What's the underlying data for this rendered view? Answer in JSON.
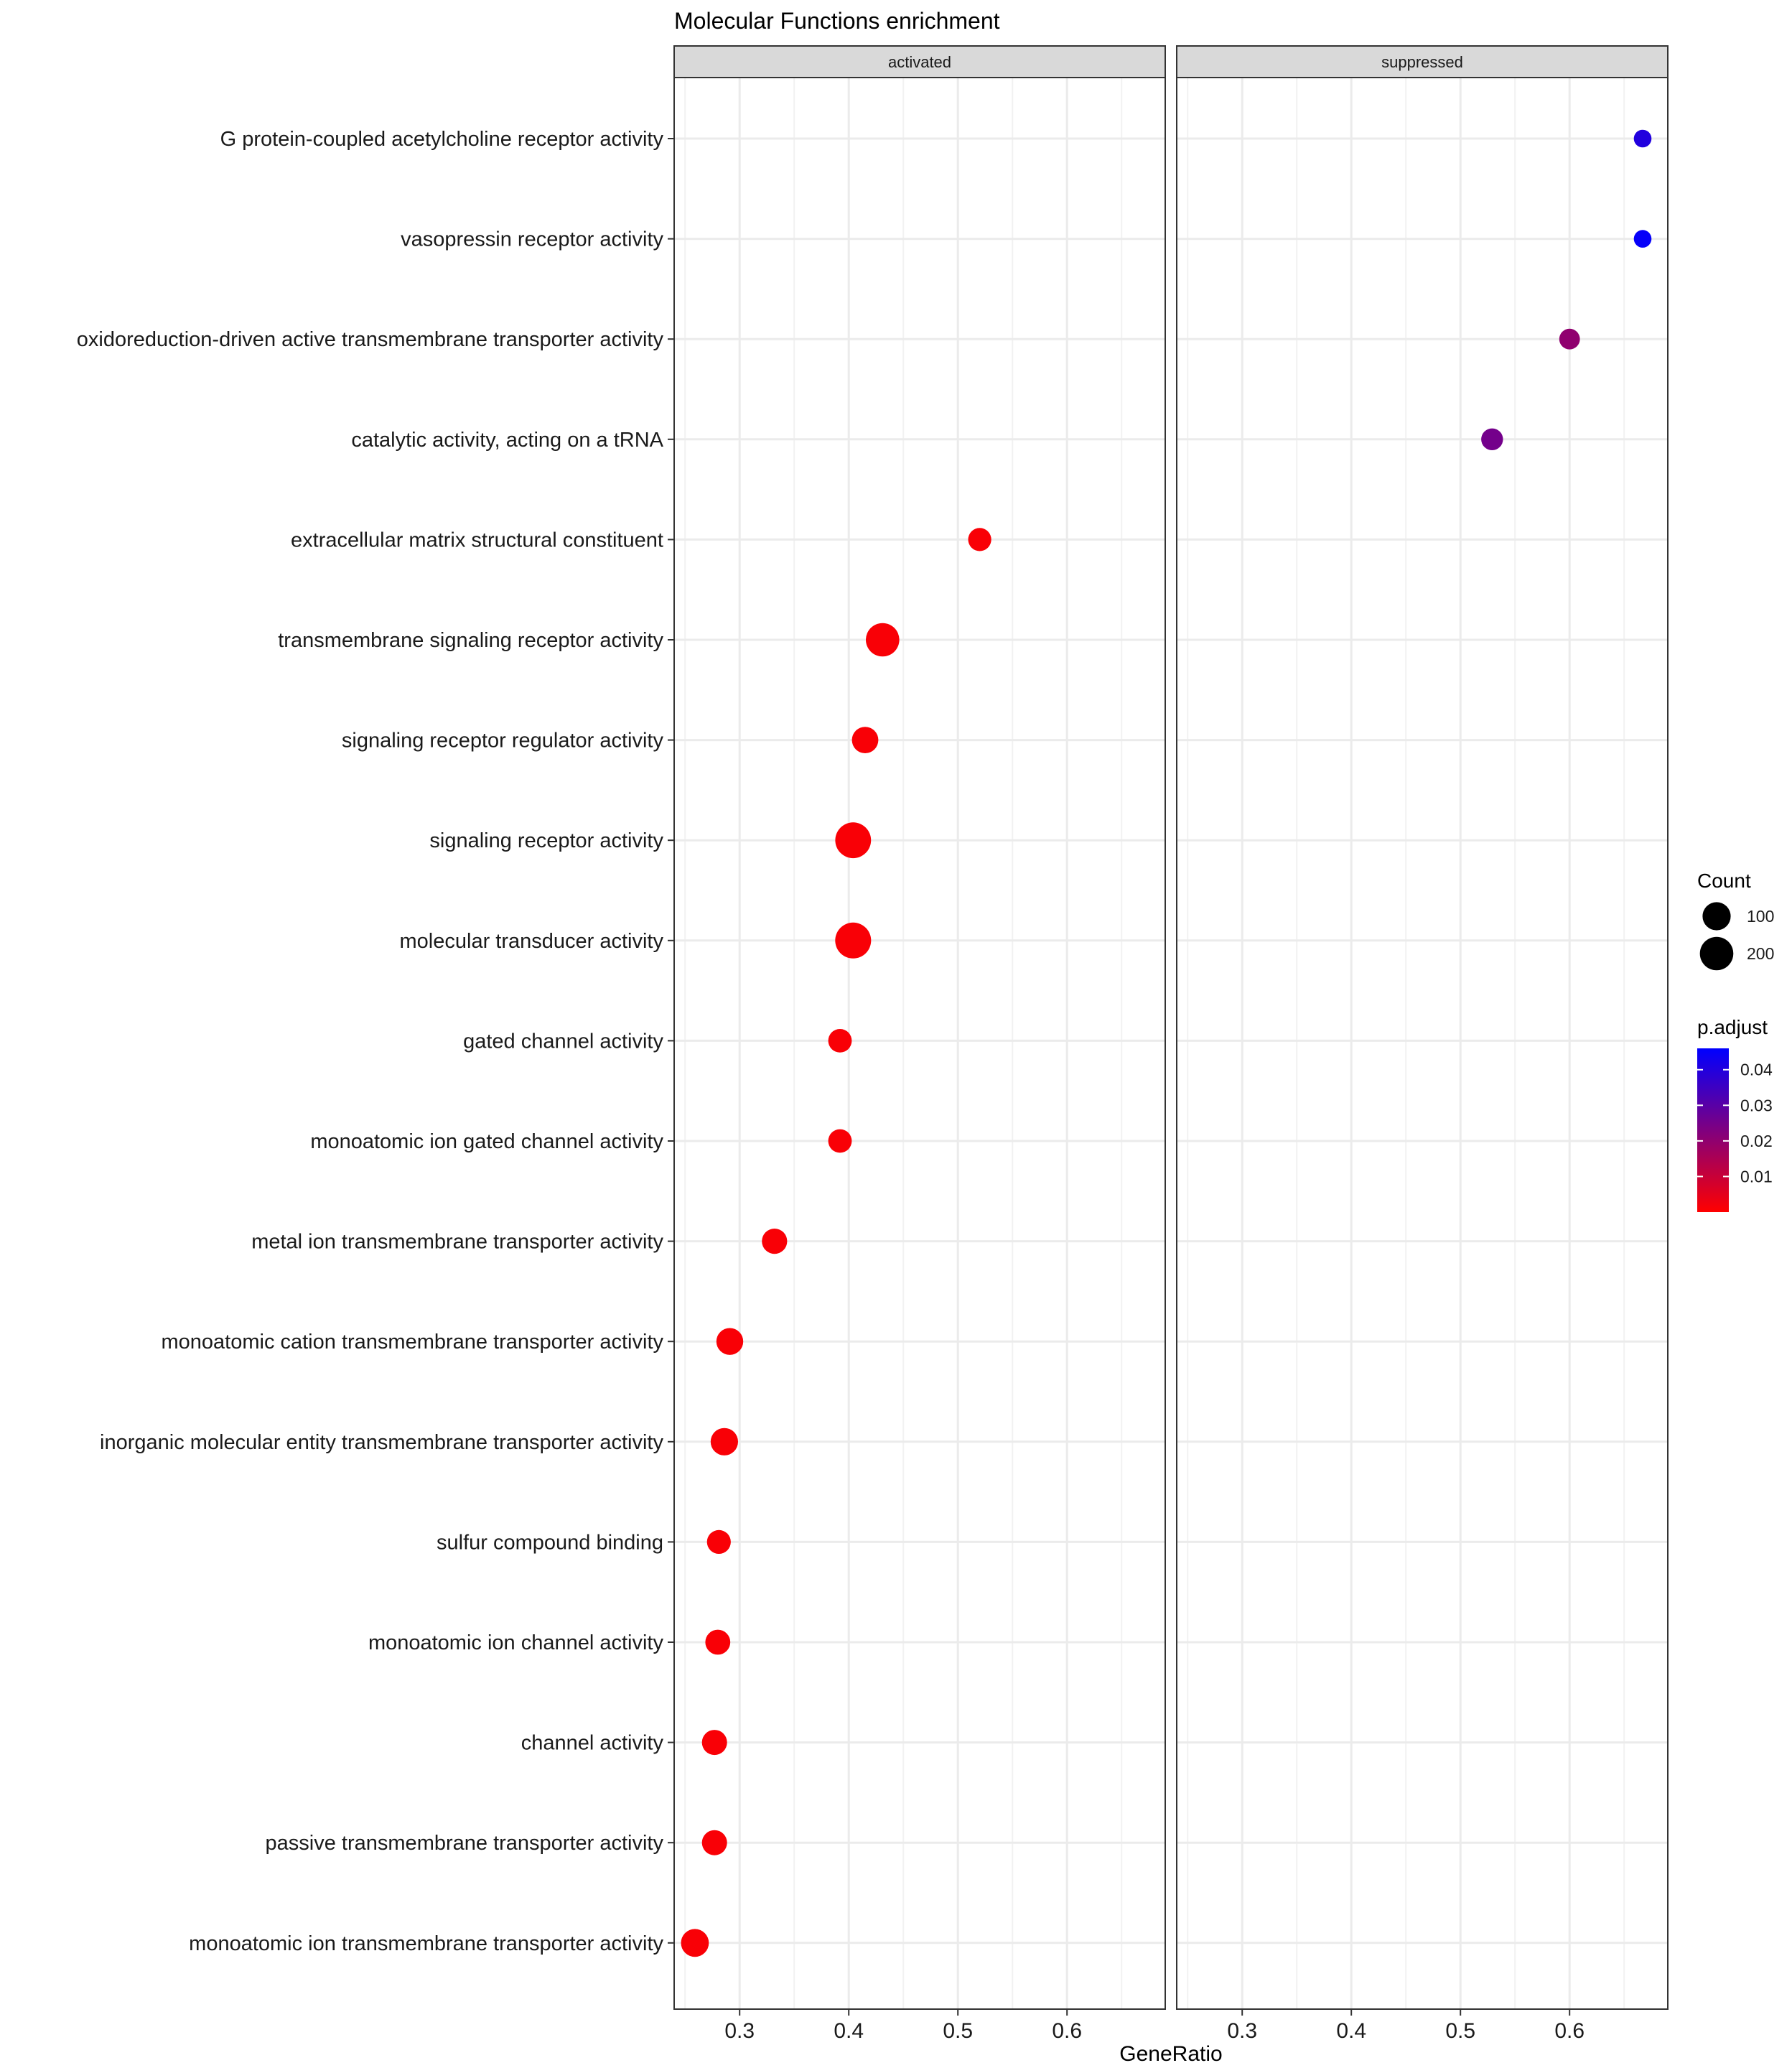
{
  "chart_data": {
    "type": "scatter",
    "title": "Molecular Functions enrichment",
    "xlabel": "GeneRatio",
    "ylabel": "",
    "xlim": [
      0.24,
      0.69
    ],
    "xticks": [
      0.3,
      0.4,
      0.5,
      0.6
    ],
    "xtick_labels": [
      "0.3",
      "0.4",
      "0.5",
      "0.6"
    ],
    "panels": [
      "activated",
      "suppressed"
    ],
    "categories": [
      "G protein-coupled acetylcholine receptor activity",
      "vasopressin receptor activity",
      "oxidoreduction-driven active transmembrane transporter activity",
      "catalytic activity, acting on a tRNA",
      "extracellular matrix structural constituent",
      "transmembrane signaling receptor activity",
      "signaling receptor regulator activity",
      "signaling receptor activity",
      "molecular transducer activity",
      "gated channel activity",
      "monoatomic ion gated channel activity",
      "metal ion transmembrane transporter activity",
      "monoatomic cation transmembrane transporter activity",
      "inorganic molecular entity transmembrane transporter activity",
      "sulfur compound binding",
      "monoatomic ion channel activity",
      "channel activity",
      "passive transmembrane transporter activity",
      "monoatomic ion transmembrane transporter activity"
    ],
    "points": [
      {
        "panel": "suppressed",
        "category": "G protein-coupled acetylcholine receptor activity",
        "x": 0.667,
        "count": 4,
        "p_adjust": 0.04
      },
      {
        "panel": "suppressed",
        "category": "vasopressin receptor activity",
        "x": 0.667,
        "count": 4,
        "p_adjust": 0.045
      },
      {
        "panel": "suppressed",
        "category": "oxidoreduction-driven active transmembrane transporter activity",
        "x": 0.6,
        "count": 18,
        "p_adjust": 0.02
      },
      {
        "panel": "suppressed",
        "category": "catalytic activity, acting on a tRNA",
        "x": 0.529,
        "count": 27,
        "p_adjust": 0.025
      },
      {
        "panel": "activated",
        "category": "extracellular matrix structural constituent",
        "x": 0.52,
        "count": 38,
        "p_adjust": 0.001
      },
      {
        "panel": "activated",
        "category": "transmembrane signaling receptor activity",
        "x": 0.431,
        "count": 200,
        "p_adjust": 0.001
      },
      {
        "panel": "activated",
        "category": "signaling receptor regulator activity",
        "x": 0.415,
        "count": 75,
        "p_adjust": 0.001
      },
      {
        "panel": "activated",
        "category": "signaling receptor activity",
        "x": 0.404,
        "count": 250,
        "p_adjust": 0.001
      },
      {
        "panel": "activated",
        "category": "molecular transducer activity",
        "x": 0.404,
        "count": 255,
        "p_adjust": 0.001
      },
      {
        "panel": "activated",
        "category": "gated channel activity",
        "x": 0.392,
        "count": 42,
        "p_adjust": 0.001
      },
      {
        "panel": "activated",
        "category": "monoatomic ion gated channel activity",
        "x": 0.392,
        "count": 42,
        "p_adjust": 0.001
      },
      {
        "panel": "activated",
        "category": "metal ion transmembrane transporter activity",
        "x": 0.332,
        "count": 62,
        "p_adjust": 0.001
      },
      {
        "panel": "activated",
        "category": "monoatomic cation transmembrane transporter activity",
        "x": 0.291,
        "count": 82,
        "p_adjust": 0.001
      },
      {
        "panel": "activated",
        "category": "inorganic molecular entity transmembrane transporter activity",
        "x": 0.286,
        "count": 90,
        "p_adjust": 0.001
      },
      {
        "panel": "activated",
        "category": "sulfur compound binding",
        "x": 0.281,
        "count": 45,
        "p_adjust": 0.001
      },
      {
        "panel": "activated",
        "category": "monoatomic ion channel activity",
        "x": 0.28,
        "count": 58,
        "p_adjust": 0.001
      },
      {
        "panel": "activated",
        "category": "channel activity",
        "x": 0.277,
        "count": 60,
        "p_adjust": 0.001
      },
      {
        "panel": "activated",
        "category": "passive transmembrane transporter activity",
        "x": 0.277,
        "count": 60,
        "p_adjust": 0.001
      },
      {
        "panel": "activated",
        "category": "monoatomic ion transmembrane transporter activity",
        "x": 0.259,
        "count": 95,
        "p_adjust": 0.001
      }
    ],
    "size_legend": {
      "title": "Count",
      "values": [
        100,
        200
      ],
      "labels": [
        "100",
        "200"
      ]
    },
    "color_legend": {
      "title": "p.adjust",
      "range": [
        0.0,
        0.046
      ],
      "ticks": [
        0.01,
        0.02,
        0.03,
        0.04
      ],
      "tick_labels": [
        "0.01",
        "0.02",
        "0.03",
        "0.04"
      ],
      "low_color": "#FF0000",
      "high_color": "#0000FF"
    },
    "grid": true,
    "legend_position": "right"
  }
}
